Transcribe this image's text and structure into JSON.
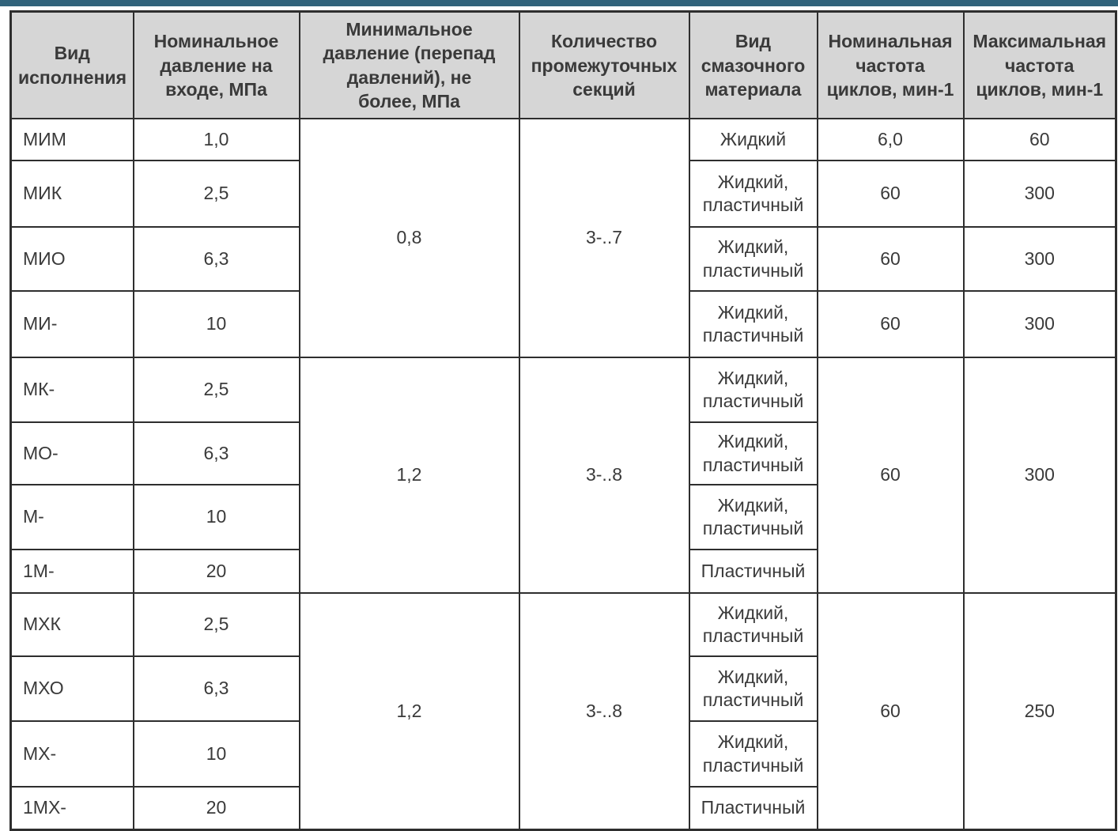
{
  "colors": {
    "accent_bar": "#31637b",
    "header_bg": "#d6d6d6",
    "border": "#2e2e2e",
    "text": "#3a3a3a"
  },
  "table": {
    "headers": [
      "Вид исполнения",
      "Номинальное давление на входе, МПа",
      "Минимальное давление (перепад давлений), не более, МПа",
      "Количество промежуточных секций",
      "Вид смазочного материала",
      "Номинальная частота циклов, мин-1",
      "Максимальная частота циклов, мин-1"
    ],
    "groups": [
      {
        "min_pressure": "0,8",
        "sections": "3-..7",
        "rows": [
          {
            "type": "МИМ",
            "pressure": "1,0",
            "lubricant": "Жидкий",
            "nominal": "6,0",
            "max": "60"
          },
          {
            "type": "МИК",
            "pressure": "2,5",
            "lubricant": "Жидкий, пластичный",
            "nominal": "60",
            "max": "300"
          },
          {
            "type": "МИО",
            "pressure": "6,3",
            "lubricant": "Жидкий, пластичный",
            "nominal": "60",
            "max": "300"
          },
          {
            "type": "МИ-",
            "pressure": "10",
            "lubricant": "Жидкий, пластичный",
            "nominal": "60",
            "max": "300"
          }
        ]
      },
      {
        "min_pressure": "1,2",
        "sections": "3-..8",
        "nominal": "60",
        "max": "300",
        "rows": [
          {
            "type": "МК-",
            "pressure": "2,5",
            "lubricant": "Жидкий, пластичный"
          },
          {
            "type": "МО-",
            "pressure": "6,3",
            "lubricant": "Жидкий, пластичный"
          },
          {
            "type": "М-",
            "pressure": "10",
            "lubricant": "Жидкий, пластичный"
          },
          {
            "type": "1М-",
            "pressure": "20",
            "lubricant": "Пластичный"
          }
        ]
      },
      {
        "min_pressure": "1,2",
        "sections": "3-..8",
        "nominal": "60",
        "max": "250",
        "rows": [
          {
            "type": "МХК",
            "pressure": "2,5",
            "lubricant": "Жидкий, пластичный"
          },
          {
            "type": "МХО",
            "pressure": "6,3",
            "lubricant": "Жидкий, пластичный"
          },
          {
            "type": "МХ-",
            "pressure": "10",
            "lubricant": "Жидкий, пластичный"
          },
          {
            "type": "1МХ-",
            "pressure": "20",
            "lubricant": "Пластичный"
          }
        ]
      }
    ]
  }
}
